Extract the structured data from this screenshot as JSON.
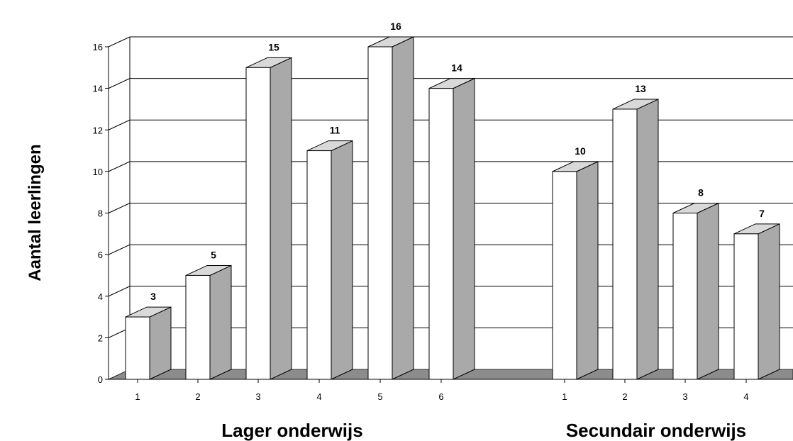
{
  "chart_data": {
    "type": "bar",
    "ylabel": "Aantal leerlingen",
    "ylim": [
      0,
      16
    ],
    "yticks": [
      0,
      2,
      4,
      6,
      8,
      10,
      12,
      14,
      16
    ],
    "grid": true,
    "style": "3d-column",
    "colors": {
      "front": "#ffffff",
      "side": "#a9a9a9",
      "top": "#d9d9d9",
      "floor": "#8c8c8c",
      "wall": "#ffffff",
      "grid": "#000000"
    },
    "groups": [
      {
        "label": "Lager onderwijs",
        "categories": [
          "1",
          "2",
          "3",
          "4",
          "5",
          "6"
        ],
        "values": [
          3,
          5,
          15,
          11,
          16,
          14
        ]
      },
      {
        "label": "Secundair onderwijs",
        "categories": [
          "1",
          "2",
          "3",
          "4"
        ],
        "values": [
          10,
          13,
          8,
          7
        ]
      }
    ]
  }
}
